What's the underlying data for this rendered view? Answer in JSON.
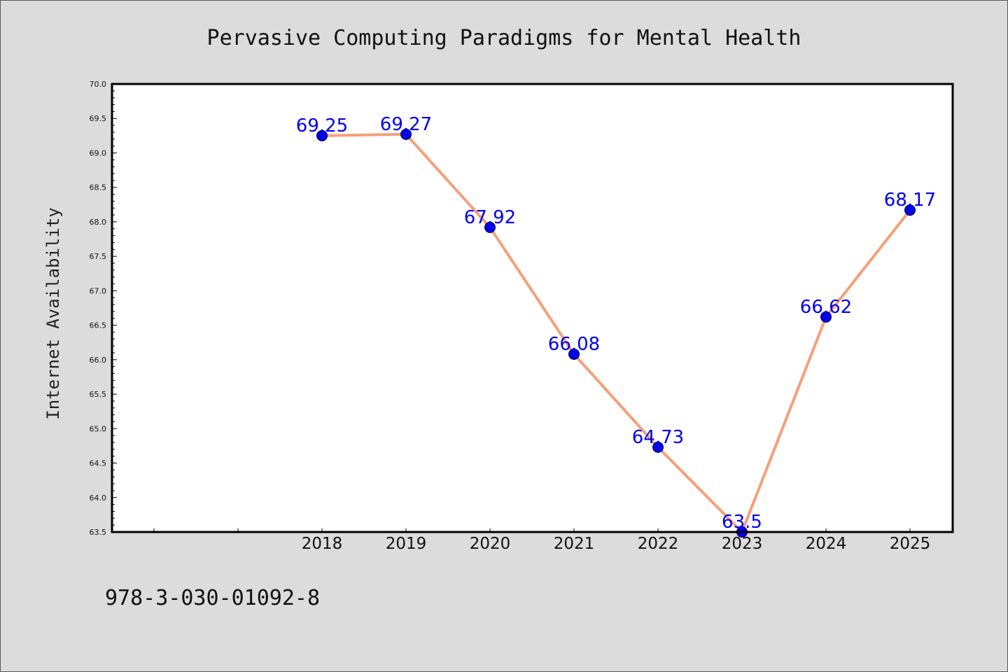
{
  "chart_data": {
    "type": "line",
    "title": "Pervasive Computing Paradigms for Mental Health",
    "ylabel": "Internet Availability",
    "xlabel": "",
    "x": [
      "2018",
      "2019",
      "2020",
      "2021",
      "2022",
      "2023",
      "2024",
      "2025"
    ],
    "series": [
      {
        "values": [
          69.25,
          69.27,
          67.92,
          66.08,
          64.73,
          63.5,
          66.62,
          68.17
        ]
      }
    ],
    "data_labels": [
      "69.25",
      "69.27",
      "67.92",
      "66.08",
      "64.73",
      "63.5",
      "66.62",
      "68.17"
    ],
    "ylim": [
      63.5,
      70.0
    ],
    "yticks": [
      "63.5",
      "64.0",
      "64.5",
      "65.0",
      "65.5",
      "66.0",
      "66.5",
      "67.0",
      "67.5",
      "68.0",
      "68.5",
      "69.0",
      "69.5",
      "70.0"
    ],
    "grid": false,
    "legend": "none",
    "colors": {
      "line": "#f4a07a",
      "marker": "#0000ee",
      "label": "#0000ee",
      "background": "#dcdcdc",
      "plot_background": "#ffffff"
    }
  },
  "footer": {
    "isbn": "978-3-030-01092-8"
  }
}
